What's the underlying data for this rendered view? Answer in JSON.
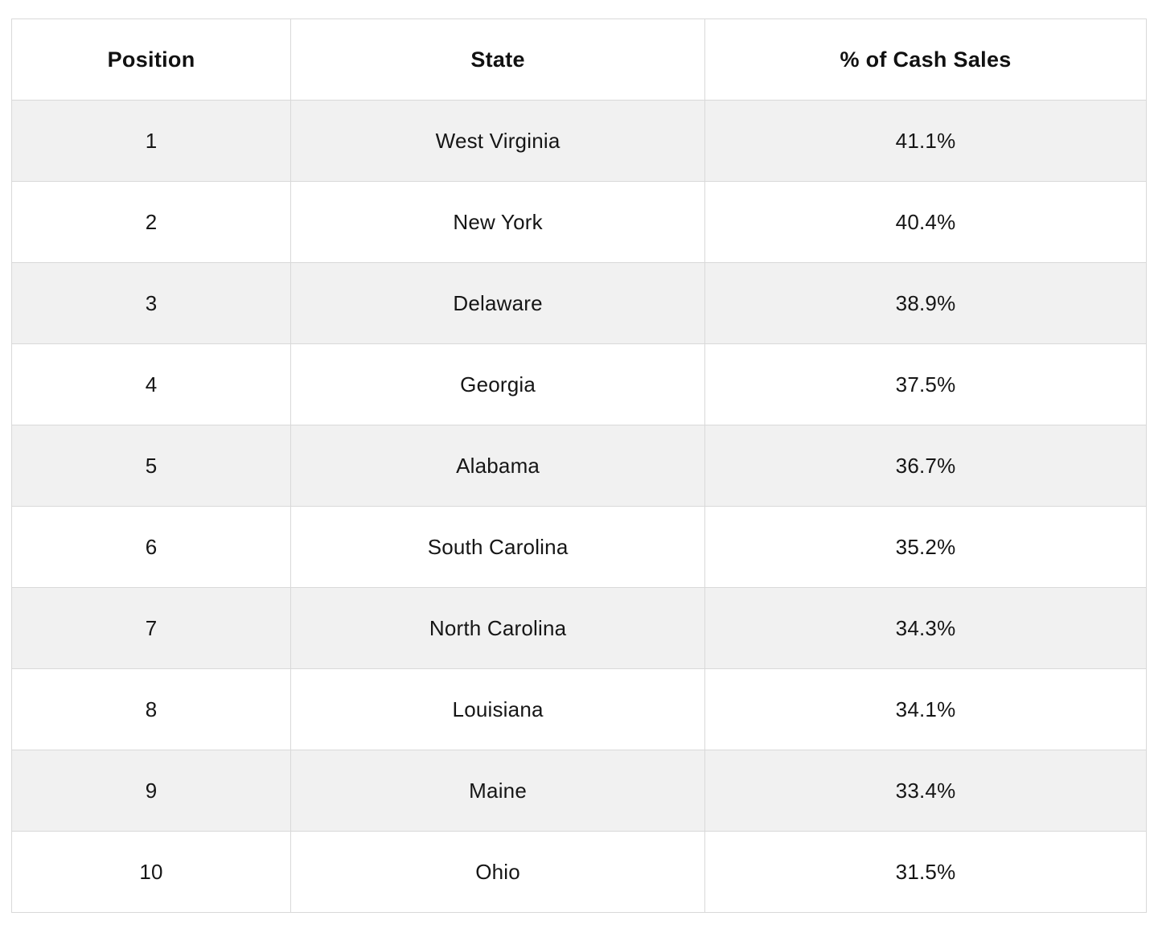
{
  "chart_data": {
    "type": "table",
    "title": "",
    "columns": [
      "Position",
      "State",
      "% of Cash Sales"
    ],
    "rows": [
      {
        "position": "1",
        "state": "West Virginia",
        "pct": "41.1%"
      },
      {
        "position": "2",
        "state": "New York",
        "pct": "40.4%"
      },
      {
        "position": "3",
        "state": "Delaware",
        "pct": "38.9%"
      },
      {
        "position": "4",
        "state": "Georgia",
        "pct": "37.5%"
      },
      {
        "position": "5",
        "state": "Alabama",
        "pct": "36.7%"
      },
      {
        "position": "6",
        "state": "South Carolina",
        "pct": "35.2%"
      },
      {
        "position": "7",
        "state": "North Carolina",
        "pct": "34.3%"
      },
      {
        "position": "8",
        "state": "Louisiana",
        "pct": "34.1%"
      },
      {
        "position": "9",
        "state": "Maine",
        "pct": "33.4%"
      },
      {
        "position": "10",
        "state": "Ohio",
        "pct": "31.5%"
      }
    ],
    "values_numeric": [
      41.1,
      40.4,
      38.9,
      37.5,
      36.7,
      35.2,
      34.3,
      34.1,
      33.4,
      31.5
    ],
    "layout": {
      "zebra_striping": true,
      "text_align": "center",
      "grid": true
    }
  },
  "colors": {
    "page_background": "#ffffff",
    "stripe_row_background": "#f1f1f1",
    "border": "#d9d9d9",
    "text": "#161616"
  }
}
